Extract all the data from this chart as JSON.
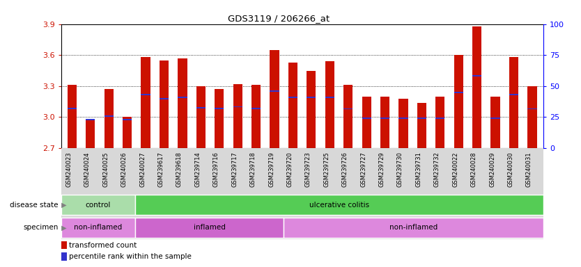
{
  "title": "GDS3119 / 206266_at",
  "samples": [
    "GSM240023",
    "GSM240024",
    "GSM240025",
    "GSM240026",
    "GSM240027",
    "GSM239617",
    "GSM239618",
    "GSM239714",
    "GSM239716",
    "GSM239717",
    "GSM239718",
    "GSM239719",
    "GSM239720",
    "GSM239723",
    "GSM239725",
    "GSM239726",
    "GSM239727",
    "GSM239729",
    "GSM239730",
    "GSM239731",
    "GSM239732",
    "GSM240022",
    "GSM240028",
    "GSM240029",
    "GSM240030",
    "GSM240031"
  ],
  "transformed_count": [
    3.31,
    2.97,
    3.27,
    3.0,
    3.58,
    3.55,
    3.57,
    3.3,
    3.27,
    3.32,
    3.31,
    3.65,
    3.53,
    3.45,
    3.54,
    3.31,
    3.2,
    3.2,
    3.18,
    3.14,
    3.2,
    3.6,
    3.88,
    3.2,
    3.58,
    3.3
  ],
  "percentile_rank": [
    3.085,
    2.975,
    3.01,
    2.975,
    3.22,
    3.18,
    3.19,
    3.09,
    3.085,
    3.1,
    3.085,
    3.25,
    3.19,
    3.19,
    3.19,
    3.08,
    2.99,
    2.99,
    2.99,
    2.99,
    2.99,
    3.24,
    3.4,
    2.99,
    3.22,
    3.08
  ],
  "ymin": 2.7,
  "ymax": 3.9,
  "yticks": [
    2.7,
    3.0,
    3.3,
    3.6,
    3.9
  ],
  "right_yticks": [
    0,
    25,
    50,
    75,
    100
  ],
  "bar_color": "#cc1100",
  "blue_color": "#3333cc",
  "disease_state": [
    {
      "label": "control",
      "start": 0,
      "end": 4,
      "color": "#aaddaa"
    },
    {
      "label": "ulcerative colitis",
      "start": 4,
      "end": 26,
      "color": "#55cc55"
    }
  ],
  "specimen": [
    {
      "label": "non-inflamed",
      "start": 0,
      "end": 4,
      "color": "#dd88dd"
    },
    {
      "label": "inflamed",
      "start": 4,
      "end": 12,
      "color": "#cc66cc"
    },
    {
      "label": "non-inflamed",
      "start": 12,
      "end": 26,
      "color": "#dd88dd"
    }
  ],
  "plot_bg": "#ffffff",
  "row_bg": "#d8d8d8"
}
